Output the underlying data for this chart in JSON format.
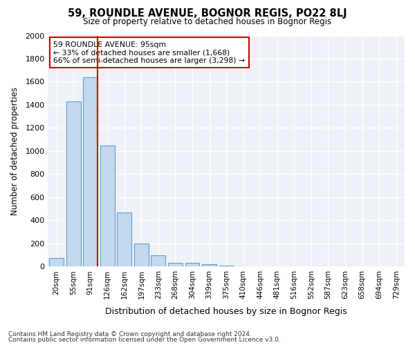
{
  "title": "59, ROUNDLE AVENUE, BOGNOR REGIS, PO22 8LJ",
  "subtitle": "Size of property relative to detached houses in Bognor Regis",
  "xlabel": "Distribution of detached houses by size in Bognor Regis",
  "ylabel": "Number of detached properties",
  "footnote1": "Contains HM Land Registry data © Crown copyright and database right 2024.",
  "footnote2": "Contains public sector information licensed under the Open Government Licence v3.0.",
  "bar_values": [
    75,
    1430,
    1640,
    1050,
    470,
    200,
    100,
    35,
    30,
    20,
    10,
    0,
    0,
    0,
    0,
    0,
    0,
    0,
    0,
    0,
    0
  ],
  "categories": [
    "20sqm",
    "55sqm",
    "91sqm",
    "126sqm",
    "162sqm",
    "197sqm",
    "233sqm",
    "268sqm",
    "304sqm",
    "339sqm",
    "375sqm",
    "410sqm",
    "446sqm",
    "481sqm",
    "516sqm",
    "552sqm",
    "587sqm",
    "623sqm",
    "658sqm",
    "694sqm",
    "729sqm"
  ],
  "bar_color": "#c5d8ed",
  "bar_edge_color": "#5b9bd5",
  "vline_color": "#cc0000",
  "ylim": [
    0,
    2000
  ],
  "yticks": [
    0,
    200,
    400,
    600,
    800,
    1000,
    1200,
    1400,
    1600,
    1800,
    2000
  ],
  "annotation_title": "59 ROUNDLE AVENUE: 95sqm",
  "annotation_line1": "← 33% of detached houses are smaller (1,668)",
  "annotation_line2": "66% of semi-detached houses are larger (3,298) →",
  "annotation_box_color": "#cc0000",
  "figsize": [
    6.0,
    5.0
  ],
  "dpi": 100,
  "bg_color": "#eef2f8"
}
